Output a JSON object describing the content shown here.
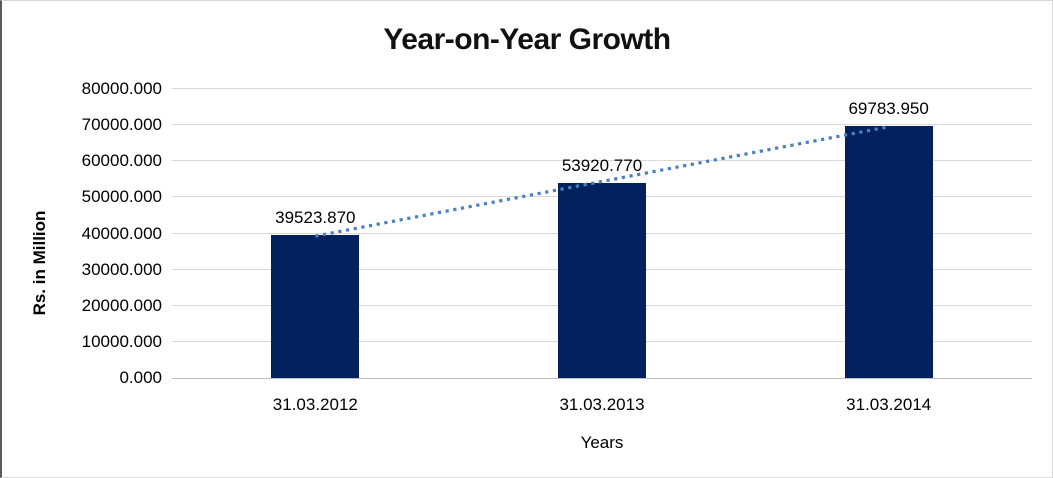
{
  "chart_data": {
    "type": "bar",
    "title": "Year-on-Year Growth",
    "xlabel": "Years",
    "ylabel": "Rs. in Million",
    "categories": [
      "31.03.2012",
      "31.03.2013",
      "31.03.2014"
    ],
    "values": [
      39523.87,
      53920.77,
      69783.95
    ],
    "value_labels": [
      "39523.870",
      "53920.770",
      "69783.950"
    ],
    "ytick_labels": [
      "0.000",
      "10000.000",
      "20000.000",
      "30000.000",
      "40000.000",
      "50000.000",
      "60000.000",
      "70000.000",
      "80000.000"
    ],
    "ylim": [
      0,
      80000
    ],
    "grid": true,
    "legend": "none",
    "trendline": true,
    "colors": {
      "bar": "#03215C",
      "trend": "#4A80C0",
      "grid": "#D9D9D9",
      "axis": "#BFBFBF",
      "text": "#000000"
    }
  }
}
